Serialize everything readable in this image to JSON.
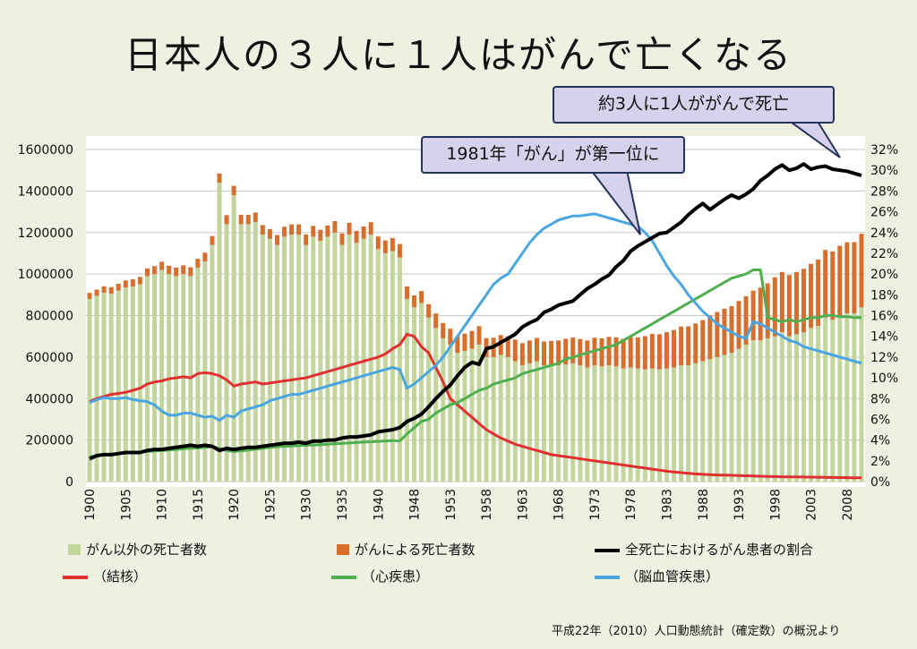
{
  "title": "日本人の３人に１人はがんで亡くなる",
  "callouts": {
    "one_in_three": "約3人に1人ががんで死亡",
    "cancer_first_1981": "1981年「がん」が第一位に"
  },
  "source": "平成22年（2010）人口動態統計（確定数）の概況より",
  "colors": {
    "non_cancer_bar": "#c2d69b",
    "cancer_bar": "#d86e2a",
    "cancer_ratio": "#000000",
    "tuberculosis": "#e03030",
    "heart": "#4fae4f",
    "cerebro": "#4aa6e0"
  },
  "chart_data": {
    "type": "bar",
    "stacked": true,
    "x_tick_labels": [
      "1900",
      "1905",
      "1910",
      "1915",
      "1920",
      "1925",
      "1930",
      "1935",
      "1940",
      "1948",
      "1953",
      "1958",
      "1963",
      "1968",
      "1973",
      "1978",
      "1983",
      "1988",
      "1993",
      "1998",
      "2003",
      "2008"
    ],
    "y_left_ticks": [
      "0",
      "200000",
      "400000",
      "600000",
      "800000",
      "1000000",
      "1200000",
      "1400000",
      "1600000"
    ],
    "y_right_ticks": [
      "0%",
      "2%",
      "4%",
      "6%",
      "8%",
      "10%",
      "12%",
      "14%",
      "16%",
      "18%",
      "20%",
      "22%",
      "24%",
      "26%",
      "28%",
      "30%",
      "32%"
    ],
    "ylim_left": [
      0,
      1600000
    ],
    "ylim_right": [
      0,
      32
    ],
    "years": [
      1900,
      1901,
      1902,
      1903,
      1904,
      1905,
      1906,
      1907,
      1908,
      1909,
      1910,
      1911,
      1912,
      1913,
      1914,
      1915,
      1916,
      1917,
      1918,
      1919,
      1920,
      1921,
      1922,
      1923,
      1924,
      1925,
      1926,
      1927,
      1928,
      1929,
      1930,
      1931,
      1932,
      1933,
      1934,
      1935,
      1936,
      1937,
      1938,
      1939,
      1940,
      1941,
      1942,
      1943,
      1947,
      1948,
      1949,
      1950,
      1951,
      1952,
      1953,
      1954,
      1955,
      1956,
      1957,
      1958,
      1959,
      1960,
      1961,
      1962,
      1963,
      1964,
      1965,
      1966,
      1967,
      1968,
      1969,
      1970,
      1971,
      1972,
      1973,
      1974,
      1975,
      1976,
      1977,
      1978,
      1979,
      1980,
      1981,
      1982,
      1983,
      1984,
      1985,
      1986,
      1987,
      1988,
      1989,
      1990,
      1991,
      1992,
      1993,
      1994,
      1995,
      1996,
      1997,
      1998,
      1999,
      2000,
      2001,
      2002,
      2003,
      2004,
      2005,
      2006,
      2007,
      2008,
      2009,
      2010
    ],
    "series": [
      {
        "name": "がん以外の死亡者数",
        "kind": "bar",
        "values": [
          880000,
          895000,
          910000,
          905000,
          920000,
          935000,
          940000,
          950000,
          990000,
          1000000,
          1020000,
          1000000,
          990000,
          1000000,
          990000,
          1030000,
          1060000,
          1140000,
          1440000,
          1240000,
          1380000,
          1240000,
          1240000,
          1250000,
          1190000,
          1170000,
          1140000,
          1180000,
          1190000,
          1190000,
          1140000,
          1180000,
          1160000,
          1180000,
          1200000,
          1140000,
          1190000,
          1150000,
          1170000,
          1190000,
          1120000,
          1100000,
          1110000,
          1080000,
          880000,
          840000,
          860000,
          790000,
          740000,
          690000,
          660000,
          620000,
          630000,
          640000,
          660000,
          600000,
          600000,
          610000,
          600000,
          580000,
          560000,
          570000,
          580000,
          560000,
          560000,
          560000,
          565000,
          570000,
          560000,
          550000,
          560000,
          555000,
          560000,
          555000,
          545000,
          550000,
          545000,
          540000,
          545000,
          540000,
          545000,
          550000,
          560000,
          560000,
          570000,
          580000,
          590000,
          600000,
          610000,
          620000,
          640000,
          660000,
          680000,
          680000,
          690000,
          700000,
          720000,
          700000,
          710000,
          720000,
          740000,
          750000,
          790000,
          780000,
          800000,
          810000,
          810000,
          840000
        ]
      },
      {
        "name": "がんによる死亡者数",
        "kind": "bar",
        "values": [
          29000,
          30000,
          31000,
          32000,
          33000,
          34000,
          35000,
          36000,
          37000,
          38000,
          39000,
          40000,
          41000,
          42000,
          43000,
          43000,
          43000,
          43000,
          44000,
          44000,
          45000,
          45000,
          45000,
          46000,
          46000,
          47000,
          48000,
          48000,
          49000,
          49000,
          51000,
          52000,
          53000,
          54000,
          55000,
          56000,
          57000,
          58000,
          59000,
          60000,
          61000,
          62000,
          63000,
          64000,
          60000,
          57000,
          58000,
          65000,
          70000,
          74000,
          77000,
          80000,
          83000,
          86000,
          89000,
          91000,
          93000,
          96000,
          100000,
          104000,
          107000,
          110000,
          112000,
          115000,
          118000,
          120000,
          123000,
          124000,
          127000,
          130000,
          133000,
          135000,
          137000,
          140000,
          143000,
          147000,
          150000,
          161000,
          166000,
          170000,
          175000,
          180000,
          187000,
          188000,
          192000,
          198000,
          211000,
          217000,
          223000,
          225000,
          230000,
          233000,
          240000,
          255000,
          265000,
          284000,
          290000,
          295000,
          300000,
          305000,
          309000,
          320000,
          326000,
          329000,
          336000,
          343000,
          344000,
          354000
        ]
      },
      {
        "name": "全死亡におけるがん患者の割合",
        "kind": "line",
        "axis": "right",
        "values": [
          2.2,
          2.5,
          2.6,
          2.6,
          2.7,
          2.8,
          2.8,
          2.8,
          3,
          3.1,
          3.1,
          3.2,
          3.3,
          3.4,
          3.5,
          3.4,
          3.5,
          3.4,
          3.0,
          3.2,
          3.1,
          3.2,
          3.3,
          3.3,
          3.4,
          3.5,
          3.6,
          3.7,
          3.7,
          3.8,
          3.7,
          3.9,
          3.9,
          4.0,
          4.0,
          4.2,
          4.3,
          4.3,
          4.4,
          4.5,
          4.8,
          4.9,
          5.0,
          5.2,
          5.8,
          6.1,
          6.5,
          7.2,
          8.0,
          8.7,
          9.3,
          10.2,
          11.0,
          11.5,
          11.3,
          12.8,
          13.0,
          13.4,
          13.8,
          14.2,
          14.9,
          15.3,
          15.6,
          16.3,
          16.6,
          17.0,
          17.2,
          17.4,
          18.0,
          18.6,
          19.0,
          19.5,
          19.9,
          20.7,
          21.3,
          22.2,
          22.7,
          23.1,
          23.5,
          23.9,
          24.0,
          24.5,
          25.0,
          25.7,
          26.3,
          26.8,
          26.2,
          26.7,
          27.2,
          27.6,
          27.3,
          27.7,
          28.2,
          29.0,
          29.5,
          30.1,
          30.5,
          30.0,
          30.2,
          30.6,
          30.1,
          30.3,
          30.4,
          30.1,
          30.0,
          29.9,
          29.7,
          29.5
        ]
      },
      {
        "name": "（結核）",
        "kind": "line",
        "axis": "left",
        "values": [
          385000,
          400000,
          410000,
          420000,
          425000,
          430000,
          440000,
          450000,
          470000,
          480000,
          485000,
          495000,
          500000,
          505000,
          500000,
          520000,
          525000,
          520000,
          510000,
          490000,
          460000,
          470000,
          475000,
          480000,
          470000,
          475000,
          480000,
          485000,
          490000,
          495000,
          500000,
          510000,
          520000,
          530000,
          540000,
          550000,
          560000,
          570000,
          580000,
          590000,
          600000,
          615000,
          640000,
          660000,
          710000,
          700000,
          650000,
          620000,
          550000,
          480000,
          400000,
          370000,
          340000,
          310000,
          280000,
          250000,
          230000,
          210000,
          195000,
          180000,
          170000,
          160000,
          150000,
          140000,
          130000,
          125000,
          120000,
          115000,
          110000,
          105000,
          100000,
          95000,
          90000,
          85000,
          80000,
          75000,
          70000,
          65000,
          60000,
          55000,
          50000,
          46000,
          43000,
          40000,
          37000,
          35000,
          33000,
          32000,
          31000,
          30000,
          29000,
          28000,
          27000,
          26000,
          25000,
          24000,
          23500,
          23000,
          22500,
          22000,
          21500,
          21000,
          20500,
          20000,
          19500,
          19000,
          18500,
          18000
        ]
      },
      {
        "name": "（心疾患）",
        "kind": "line",
        "axis": "left",
        "values": [
          120000,
          125000,
          130000,
          132000,
          135000,
          138000,
          140000,
          142000,
          145000,
          148000,
          150000,
          152000,
          155000,
          158000,
          160000,
          162000,
          165000,
          168000,
          160000,
          150000,
          145000,
          148000,
          152000,
          156000,
          160000,
          165000,
          168000,
          170000,
          172000,
          174000,
          175000,
          176000,
          178000,
          180000,
          182000,
          184000,
          186000,
          188000,
          190000,
          192000,
          194000,
          196000,
          198000,
          196000,
          230000,
          260000,
          290000,
          300000,
          330000,
          350000,
          370000,
          380000,
          400000,
          420000,
          440000,
          450000,
          470000,
          480000,
          490000,
          500000,
          520000,
          530000,
          540000,
          550000,
          560000,
          570000,
          590000,
          600000,
          610000,
          620000,
          630000,
          640000,
          650000,
          660000,
          680000,
          700000,
          720000,
          740000,
          760000,
          780000,
          800000,
          820000,
          840000,
          860000,
          880000,
          900000,
          920000,
          940000,
          960000,
          980000,
          990000,
          1000000,
          1020000,
          1020000,
          790000,
          780000,
          770000,
          780000,
          770000,
          780000,
          790000,
          790000,
          800000,
          800000,
          795000,
          795000,
          790000,
          790000
        ]
      },
      {
        "name": "（脳血管疾患）",
        "kind": "line",
        "axis": "left",
        "values": [
          380000,
          395000,
          405000,
          400000,
          400000,
          405000,
          395000,
          390000,
          385000,
          370000,
          340000,
          320000,
          320000,
          330000,
          330000,
          320000,
          310000,
          315000,
          295000,
          320000,
          310000,
          340000,
          350000,
          360000,
          370000,
          390000,
          400000,
          410000,
          420000,
          420000,
          430000,
          440000,
          450000,
          460000,
          470000,
          480000,
          490000,
          500000,
          510000,
          520000,
          530000,
          540000,
          550000,
          540000,
          450000,
          470000,
          500000,
          530000,
          560000,
          600000,
          650000,
          700000,
          750000,
          800000,
          850000,
          900000,
          950000,
          980000,
          1000000,
          1050000,
          1100000,
          1150000,
          1190000,
          1220000,
          1240000,
          1260000,
          1270000,
          1280000,
          1280000,
          1285000,
          1290000,
          1280000,
          1270000,
          1260000,
          1250000,
          1240000,
          1230000,
          1200000,
          1160000,
          1100000,
          1040000,
          990000,
          950000,
          900000,
          860000,
          820000,
          790000,
          760000,
          740000,
          720000,
          700000,
          690000,
          770000,
          760000,
          740000,
          720000,
          700000,
          680000,
          670000,
          650000,
          640000,
          630000,
          620000,
          610000,
          600000,
          590000,
          580000,
          570000
        ]
      }
    ]
  },
  "legend": {
    "non_cancer": "がん以外の死亡者数",
    "cancer": "がんによる死亡者数",
    "ratio": "全死亡におけるがん患者の割合",
    "tb": "（結核）",
    "heart": "（心疾患）",
    "cerebro": "（脳血管疾患）"
  }
}
